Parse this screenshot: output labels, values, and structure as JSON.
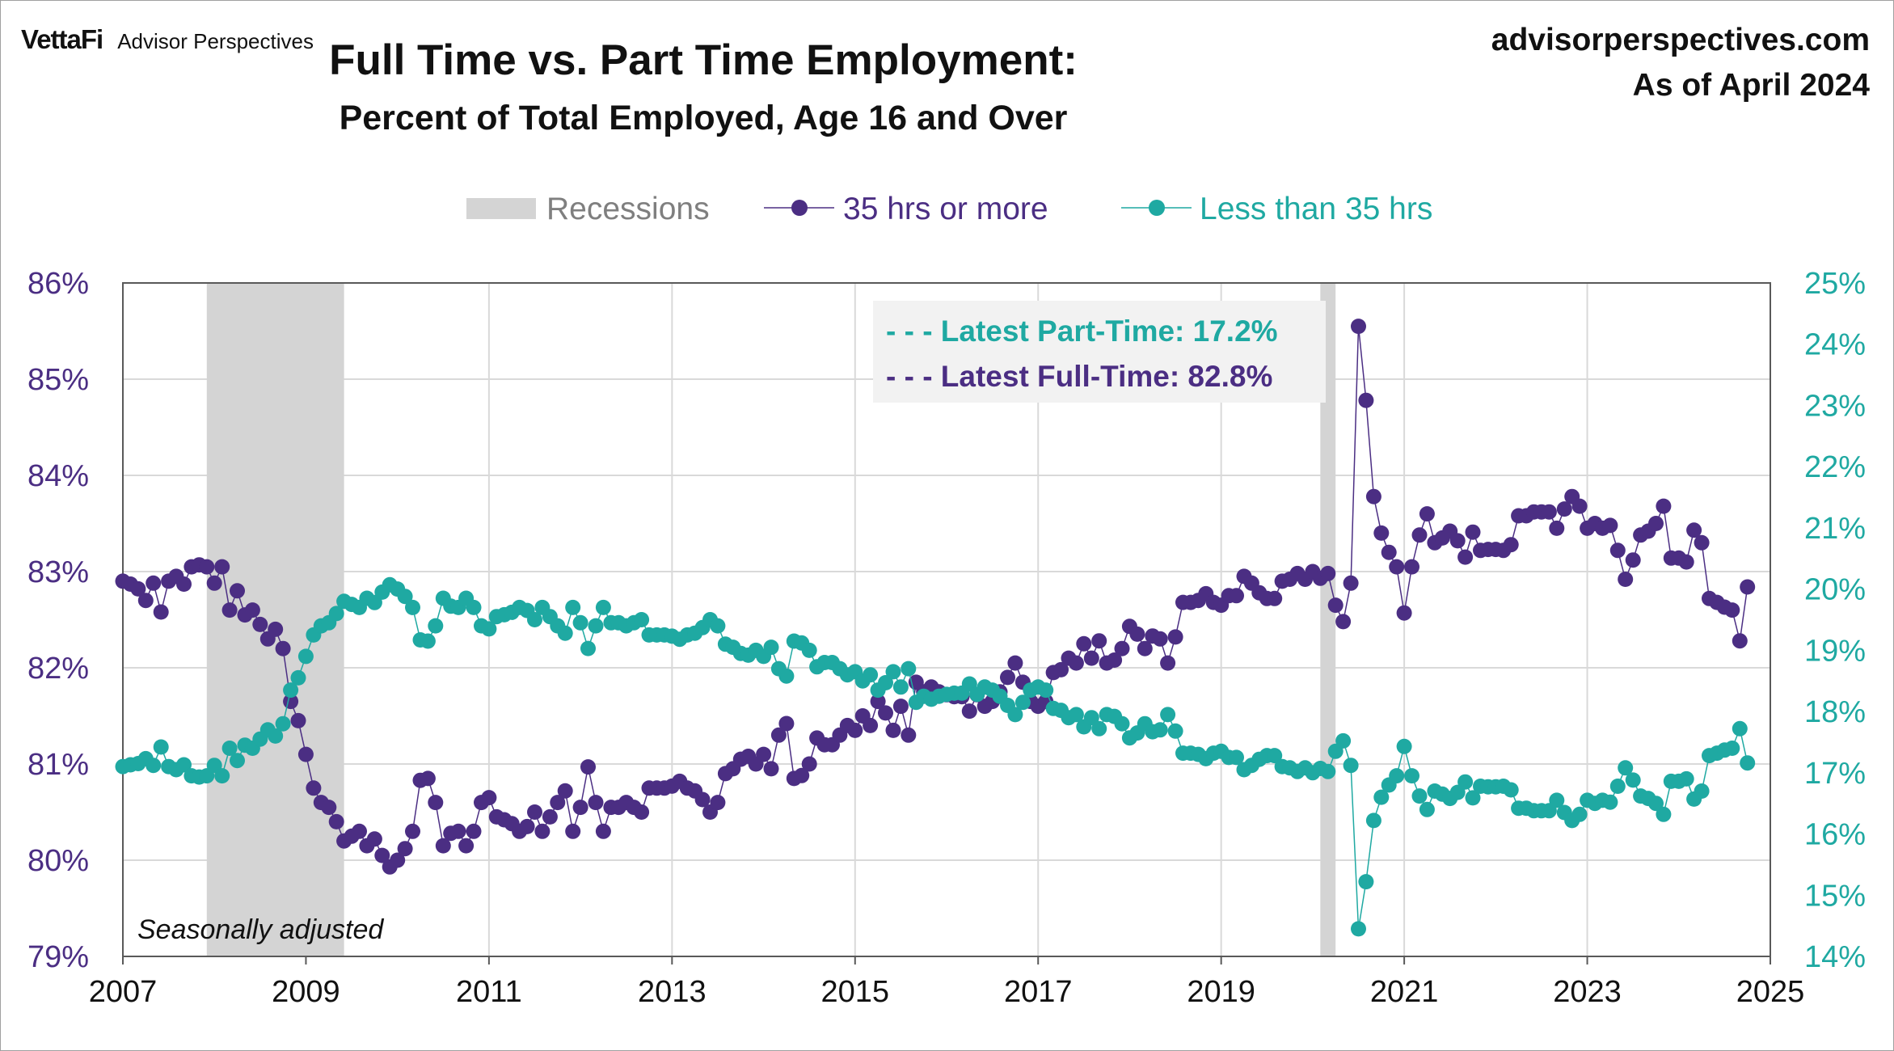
{
  "header": {
    "brand_name": "VettaFi",
    "brand_sub": "Advisor Perspectives",
    "title": "Full Time vs. Part Time Employment:",
    "subtitle": "Percent of Total Employed, Age 16 and Over",
    "site": "advisorperspectives.com",
    "as_of": "As of April 2024"
  },
  "chart_data": {
    "type": "line",
    "title": "Full Time vs. Part Time Employment:",
    "subtitle": "Percent of Total Employed, Age 16 and Over",
    "legend": {
      "placement": "top-center",
      "items": [
        "Recessions",
        "35 hrs or more",
        "Less than 35 hrs"
      ]
    },
    "colors": {
      "full_time": "#4b2e83",
      "part_time": "#1fa9a2",
      "recession": "#d4d4d4",
      "grid": "#d9d9d9"
    },
    "x_axis": {
      "ticks": [
        "2007",
        "2009",
        "2011",
        "2013",
        "2015",
        "2017",
        "2019",
        "2021",
        "2023",
        "2025"
      ],
      "range": [
        "2007-01",
        "2025-01"
      ]
    },
    "y_left": {
      "ticks": [
        "79%",
        "80%",
        "81%",
        "82%",
        "83%",
        "84%",
        "85%",
        "86%"
      ],
      "range": [
        79,
        86
      ]
    },
    "y_right": {
      "ticks": [
        "14%",
        "15%",
        "16%",
        "17%",
        "18%",
        "19%",
        "20%",
        "21%",
        "22%",
        "23%",
        "24%",
        "25%"
      ],
      "range": [
        14,
        25
      ]
    },
    "grid": true,
    "recessions": [
      {
        "start": "2007-12",
        "end": "2009-06"
      },
      {
        "start": "2020-02",
        "end": "2020-04"
      }
    ],
    "annotations": {
      "latest_part_time": "- - - Latest Part-Time: 17.2%",
      "latest_full_time": "- - - Latest Full-Time: 82.8%",
      "note": "Seasonally adjusted"
    },
    "series": [
      {
        "name": "35 hrs or more",
        "axis": "left",
        "start": "2007-01",
        "values": [
          82.9,
          82.87,
          82.82,
          82.7,
          82.88,
          82.58,
          82.9,
          82.95,
          82.87,
          83.05,
          83.07,
          83.05,
          82.88,
          83.05,
          82.6,
          82.8,
          82.55,
          82.6,
          82.45,
          82.3,
          82.4,
          82.2,
          81.65,
          81.45,
          81.1,
          80.75,
          80.6,
          80.55,
          80.4,
          80.2,
          80.25,
          80.3,
          80.15,
          80.22,
          80.05,
          79.93,
          80.0,
          80.12,
          80.3,
          80.83,
          80.85,
          80.6,
          80.15,
          80.28,
          80.3,
          80.15,
          80.3,
          80.6,
          80.65,
          80.45,
          80.42,
          80.38,
          80.3,
          80.35,
          80.5,
          80.3,
          80.45,
          80.6,
          80.72,
          80.3,
          80.55,
          80.97,
          80.6,
          80.3,
          80.55,
          80.55,
          80.6,
          80.55,
          80.5,
          80.75,
          80.75,
          80.75,
          80.77,
          80.82,
          80.75,
          80.72,
          80.63,
          80.5,
          80.6,
          80.9,
          80.95,
          81.05,
          81.08,
          81.0,
          81.1,
          80.95,
          81.3,
          81.42,
          80.85,
          80.88,
          81.0,
          81.27,
          81.2,
          81.2,
          81.3,
          81.4,
          81.35,
          81.5,
          81.4,
          81.65,
          81.53,
          81.35,
          81.6,
          81.3,
          81.85,
          81.75,
          81.8,
          81.75,
          81.72,
          81.7,
          81.7,
          81.55,
          81.72,
          81.6,
          81.65,
          81.75,
          81.9,
          82.05,
          81.85,
          81.65,
          81.6,
          81.65,
          81.95,
          81.98,
          82.1,
          82.05,
          82.25,
          82.1,
          82.28,
          82.05,
          82.08,
          82.2,
          82.43,
          82.35,
          82.2,
          82.33,
          82.3,
          82.05,
          82.32,
          82.68,
          82.68,
          82.7,
          82.77,
          82.68,
          82.65,
          82.75,
          82.75,
          82.95,
          82.88,
          82.78,
          82.72,
          82.72,
          82.9,
          82.92,
          82.98,
          82.92,
          83.0,
          82.93,
          82.98,
          82.65,
          82.48,
          82.88,
          85.55,
          84.78,
          83.78,
          83.4,
          83.2,
          83.05,
          82.57,
          83.05,
          83.38,
          83.6,
          83.3,
          83.35,
          83.42,
          83.32,
          83.15,
          83.41,
          83.22,
          83.23,
          83.23,
          83.22,
          83.28,
          83.58,
          83.58,
          83.62,
          83.62,
          83.62,
          83.45,
          83.65,
          83.78,
          83.68,
          83.45,
          83.5,
          83.45,
          83.48,
          83.22,
          82.92,
          83.12,
          83.38,
          83.42,
          83.5,
          83.68,
          83.14,
          83.14,
          83.1,
          83.43,
          83.3,
          82.72,
          82.68,
          82.63,
          82.6,
          82.28,
          82.84
        ]
      },
      {
        "name": "Less than 35 hrs",
        "axis": "right",
        "start": "2007-01",
        "values": [
          17.1,
          17.13,
          17.15,
          17.23,
          17.12,
          17.42,
          17.1,
          17.05,
          17.13,
          16.95,
          16.93,
          16.95,
          17.12,
          16.95,
          17.4,
          17.2,
          17.45,
          17.4,
          17.55,
          17.7,
          17.6,
          17.8,
          18.35,
          18.55,
          18.9,
          19.25,
          19.4,
          19.45,
          19.6,
          19.8,
          19.75,
          19.7,
          19.85,
          19.78,
          19.95,
          20.07,
          20.0,
          19.88,
          19.7,
          19.17,
          19.15,
          19.4,
          19.85,
          19.72,
          19.7,
          19.85,
          19.7,
          19.4,
          19.35,
          19.55,
          19.58,
          19.62,
          19.7,
          19.65,
          19.5,
          19.7,
          19.55,
          19.4,
          19.28,
          19.7,
          19.45,
          19.03,
          19.4,
          19.7,
          19.45,
          19.45,
          19.4,
          19.45,
          19.5,
          19.25,
          19.25,
          19.25,
          19.23,
          19.18,
          19.25,
          19.28,
          19.37,
          19.5,
          19.4,
          19.1,
          19.05,
          18.95,
          18.92,
          19.0,
          18.9,
          19.05,
          18.7,
          18.58,
          19.15,
          19.12,
          19.0,
          18.73,
          18.8,
          18.8,
          18.7,
          18.6,
          18.65,
          18.5,
          18.6,
          18.35,
          18.47,
          18.65,
          18.4,
          18.7,
          18.15,
          18.25,
          18.2,
          18.25,
          18.28,
          18.3,
          18.3,
          18.45,
          18.28,
          18.4,
          18.35,
          18.25,
          18.1,
          17.95,
          18.15,
          18.35,
          18.4,
          18.35,
          18.05,
          18.02,
          17.9,
          17.95,
          17.75,
          17.9,
          17.72,
          17.95,
          17.92,
          17.8,
          17.57,
          17.65,
          17.8,
          17.67,
          17.7,
          17.95,
          17.68,
          17.32,
          17.32,
          17.3,
          17.23,
          17.32,
          17.35,
          17.25,
          17.25,
          17.05,
          17.12,
          17.22,
          17.28,
          17.28,
          17.1,
          17.08,
          17.02,
          17.08,
          17.0,
          17.07,
          17.02,
          17.35,
          17.52,
          17.12,
          14.45,
          15.22,
          16.22,
          16.6,
          16.8,
          16.95,
          17.43,
          16.95,
          16.62,
          16.4,
          16.7,
          16.65,
          16.58,
          16.68,
          16.85,
          16.59,
          16.78,
          16.77,
          16.77,
          16.78,
          16.72,
          16.42,
          16.42,
          16.38,
          16.38,
          16.38,
          16.55,
          16.35,
          16.22,
          16.32,
          16.55,
          16.5,
          16.55,
          16.52,
          16.78,
          17.08,
          16.88,
          16.62,
          16.58,
          16.5,
          16.32,
          16.86,
          16.86,
          16.9,
          16.57,
          16.7,
          17.28,
          17.32,
          17.37,
          17.4,
          17.72,
          17.16
        ]
      }
    ]
  }
}
